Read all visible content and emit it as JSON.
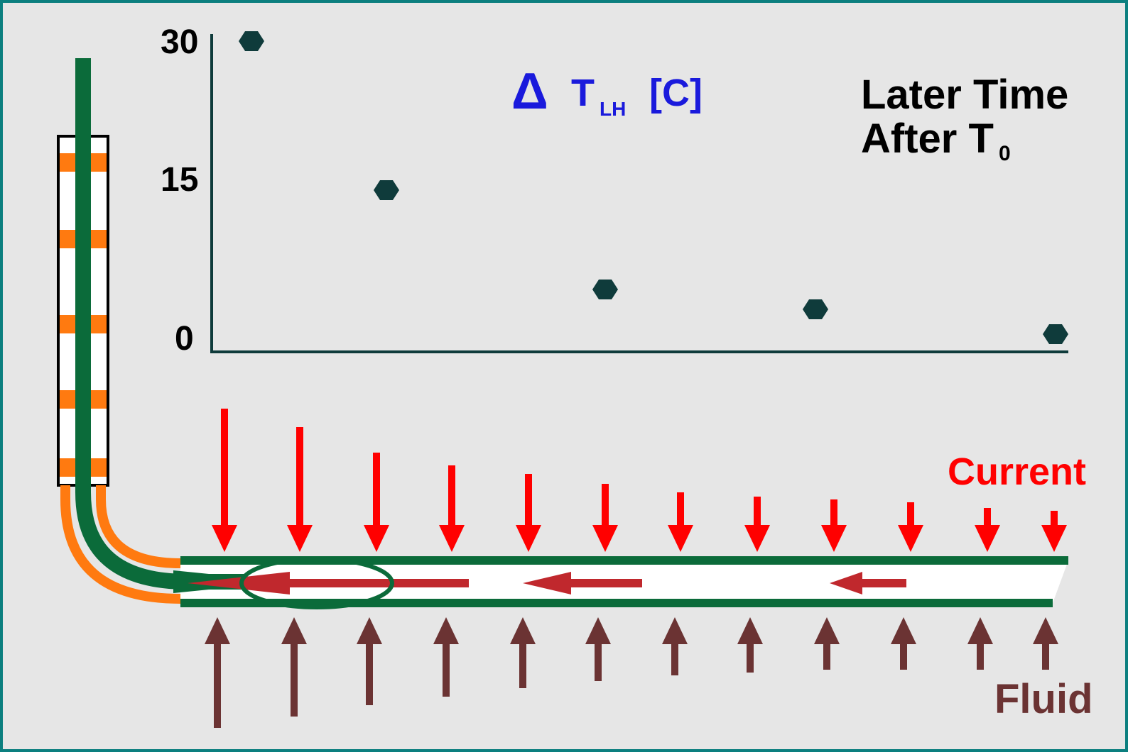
{
  "colors": {
    "background": "#e6e6e6",
    "frame": "#0c7f7f",
    "pipe_green": "#0b6b3a",
    "casing_orange": "#ff7a10",
    "current_red": "#ff0000",
    "fluid_brown": "#6b3333",
    "title_blue": "#1a1adc",
    "point_fill": "#0f3b3b"
  },
  "chart_data": {
    "type": "scatter",
    "title_symbol": "Δ",
    "title_var": "T",
    "title_sub": "LH",
    "title_unit": "[C]",
    "annotation_line1": "Later Time",
    "annotation_line2": "After T",
    "annotation_line2_sub": "0",
    "yticks": [
      "30",
      "15",
      "0"
    ],
    "ylim": [
      0,
      30
    ],
    "x": [
      1,
      2,
      3,
      4,
      5
    ],
    "y": [
      30,
      15,
      5,
      3,
      0.5
    ],
    "marker": "hexagon"
  },
  "labels": {
    "current": "Current",
    "fluid": "Fluid"
  },
  "icons": {
    "current_arrow": "down-arrow-icon",
    "fluid_arrow": "up-arrow-icon",
    "flow_arrow": "left-arrow-icon"
  }
}
